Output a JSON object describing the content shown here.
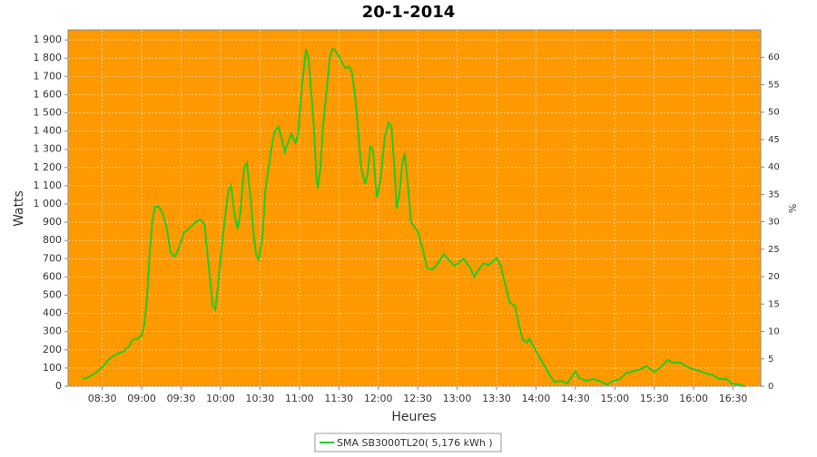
{
  "chart_data": {
    "type": "line",
    "title": "20-1-2014",
    "x_label": "Heures",
    "y_label": "Watts",
    "y2_label": "%",
    "x": [
      "08:15",
      "08:18",
      "08:22",
      "08:26",
      "08:30",
      "08:34",
      "08:38",
      "08:42",
      "08:46",
      "08:50",
      "08:53",
      "08:57",
      "09:00",
      "09:02",
      "09:04",
      "09:06",
      "09:08",
      "09:10",
      "09:13",
      "09:16",
      "09:19",
      "09:22",
      "09:25",
      "09:28",
      "09:32",
      "09:36",
      "09:40",
      "09:45",
      "09:48",
      "09:50",
      "09:52",
      "09:54",
      "09:56",
      "09:58",
      "10:00",
      "10:03",
      "10:06",
      "10:08",
      "10:11",
      "10:13",
      "10:15",
      "10:18",
      "10:20",
      "10:23",
      "10:25",
      "10:27",
      "10:29",
      "10:32",
      "10:34",
      "10:38",
      "10:41",
      "10:44",
      "10:46",
      "10:49",
      "10:51",
      "10:54",
      "10:57",
      "10:59",
      "11:01",
      "11:03",
      "11:05",
      "11:07",
      "11:09",
      "11:11",
      "11:13",
      "11:14",
      "11:16",
      "11:18",
      "11:21",
      "11:23",
      "11:25",
      "11:27",
      "11:30",
      "11:33",
      "11:35",
      "11:38",
      "11:40",
      "11:42",
      "11:44",
      "11:47",
      "11:50",
      "11:52",
      "11:54",
      "11:56",
      "11:58",
      "11:59",
      "12:02",
      "12:05",
      "12:08",
      "12:10",
      "12:12",
      "12:14",
      "12:16",
      "12:18",
      "12:20",
      "12:22",
      "12:25",
      "12:30",
      "12:34",
      "12:37",
      "12:41",
      "12:44",
      "12:50",
      "12:53",
      "12:58",
      "13:05",
      "13:10",
      "13:13",
      "13:16",
      "13:20",
      "13:24",
      "13:30",
      "13:33",
      "13:37",
      "13:40",
      "13:44",
      "13:47",
      "13:50",
      "13:53",
      "13:55",
      "13:59",
      "14:03",
      "14:07",
      "14:11",
      "14:14",
      "14:19",
      "14:24",
      "14:26",
      "14:30",
      "14:33",
      "14:38",
      "14:43",
      "14:48",
      "14:54",
      "14:59",
      "15:04",
      "15:08",
      "15:13",
      "15:20",
      "15:24",
      "15:30",
      "15:35",
      "15:40",
      "15:44",
      "15:50",
      "15:54",
      "15:59",
      "16:04",
      "16:10",
      "16:15",
      "16:19",
      "16:25",
      "16:29",
      "16:34",
      "16:39"
    ],
    "series": [
      {
        "name": "SMA SB3000TL20( 5,176 kWh )",
        "color": "#22cc22",
        "values": [
          40,
          45,
          60,
          80,
          105,
          140,
          165,
          180,
          190,
          215,
          255,
          260,
          280,
          340,
          480,
          730,
          900,
          985,
          985,
          950,
          870,
          735,
          710,
          750,
          840,
          865,
          895,
          915,
          885,
          725,
          585,
          440,
          420,
          550,
          700,
          900,
          1075,
          1100,
          925,
          865,
          950,
          1200,
          1225,
          1025,
          850,
          725,
          695,
          825,
          1075,
          1275,
          1395,
          1425,
          1375,
          1285,
          1330,
          1385,
          1335,
          1380,
          1570,
          1720,
          1850,
          1795,
          1620,
          1425,
          1150,
          1085,
          1200,
          1425,
          1645,
          1795,
          1850,
          1845,
          1810,
          1770,
          1745,
          1755,
          1720,
          1620,
          1470,
          1200,
          1110,
          1170,
          1315,
          1300,
          1100,
          1035,
          1150,
          1370,
          1445,
          1425,
          1225,
          975,
          1050,
          1200,
          1280,
          1150,
          900,
          850,
          750,
          650,
          640,
          660,
          725,
          700,
          660,
          700,
          650,
          600,
          635,
          675,
          665,
          705,
          665,
          550,
          460,
          440,
          340,
          255,
          240,
          260,
          205,
          155,
          105,
          55,
          25,
          30,
          15,
          40,
          80,
          45,
          30,
          40,
          30,
          10,
          30,
          40,
          70,
          80,
          95,
          110,
          80,
          105,
          145,
          130,
          130,
          110,
          95,
          85,
          70,
          60,
          40,
          40,
          15,
          10,
          0
        ]
      }
    ],
    "xlim": [
      "08:04",
      "16:51"
    ],
    "xticks": [
      "08:30",
      "09:00",
      "09:30",
      "10:00",
      "10:30",
      "11:00",
      "11:30",
      "12:00",
      "12:30",
      "13:00",
      "13:30",
      "14:00",
      "14:30",
      "15:00",
      "15:30",
      "16:00",
      "16:30"
    ],
    "ylim": [
      0,
      1955
    ],
    "yticks": [
      0,
      100,
      200,
      300,
      400,
      500,
      600,
      700,
      800,
      900,
      {
        "value": 1000,
        "label": "1 000"
      },
      {
        "value": 1100,
        "label": "1 100"
      },
      {
        "value": 1200,
        "label": "1 200"
      },
      {
        "value": 1300,
        "label": "1 300"
      },
      {
        "value": 1400,
        "label": "1 400"
      },
      {
        "value": 1500,
        "label": "1 500"
      },
      {
        "value": 1600,
        "label": "1 600"
      },
      {
        "value": 1700,
        "label": "1 700"
      },
      {
        "value": 1800,
        "label": "1 800"
      },
      {
        "value": 1900,
        "label": "1 900"
      }
    ],
    "y2lim": [
      0,
      65
    ],
    "y2ticks": [
      0,
      5,
      10,
      15,
      20,
      25,
      30,
      35,
      40,
      45,
      50,
      55,
      60
    ],
    "grid": true,
    "background": "#ff9900"
  }
}
